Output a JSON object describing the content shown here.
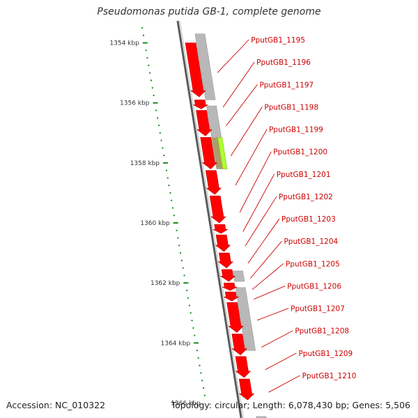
{
  "title": "Pseudomonas putida GB-1, complete genome",
  "accession": "Accession: NC_010322",
  "topology": "Topology: circular; Length: 6,078,430 bp; Genes: 5,506",
  "scale": {
    "start_kbp": 1353.5,
    "end_kbp": 1366.5,
    "labels": [
      "1354 kbp",
      "1356 kbp",
      "1358 kbp",
      "1360 kbp",
      "1362 kbp",
      "1364 kbp",
      "1366 kbp"
    ]
  },
  "genes": [
    {
      "label": "PputGB1_1195",
      "start_kbp": 1354.0,
      "end_kbp": 1355.8
    },
    {
      "label": "PputGB1_1196",
      "start_kbp": 1355.9,
      "end_kbp": 1356.2
    },
    {
      "label": "PputGB1_1197",
      "start_kbp": 1356.25,
      "end_kbp": 1357.1
    },
    {
      "label": "PputGB1_1198",
      "start_kbp": 1357.15,
      "end_kbp": 1358.2
    },
    {
      "label": "PputGB1_1199",
      "start_kbp": 1358.25,
      "end_kbp": 1359.05
    },
    {
      "label": "PputGB1_1200",
      "start_kbp": 1359.1,
      "end_kbp": 1360.0
    },
    {
      "label": "PputGB1_1201",
      "start_kbp": 1360.05,
      "end_kbp": 1360.35
    },
    {
      "label": "PputGB1_1202",
      "start_kbp": 1360.4,
      "end_kbp": 1360.95
    },
    {
      "label": "PputGB1_1203",
      "start_kbp": 1361.0,
      "end_kbp": 1361.5
    },
    {
      "label": "PputGB1_1204",
      "start_kbp": 1361.55,
      "end_kbp": 1361.95
    },
    {
      "label": "PputGB1_1205",
      "start_kbp": 1362.0,
      "end_kbp": 1362.25
    },
    {
      "label": "PputGB1_1206",
      "start_kbp": 1362.3,
      "end_kbp": 1362.6
    },
    {
      "label": "PputGB1_1207",
      "start_kbp": 1362.65,
      "end_kbp": 1363.65
    },
    {
      "label": "PputGB1_1208",
      "start_kbp": 1363.7,
      "end_kbp": 1364.4
    },
    {
      "label": "PputGB1_1209",
      "start_kbp": 1364.45,
      "end_kbp": 1365.15
    },
    {
      "label": "PputGB1_1210",
      "start_kbp": 1365.2,
      "end_kbp": 1365.9
    }
  ],
  "gray_blocks": [
    {
      "start_kbp": 1353.7,
      "end_kbp": 1355.9
    },
    {
      "start_kbp": 1356.1,
      "end_kbp": 1358.2
    },
    {
      "start_kbp": 1361.6,
      "end_kbp": 1361.95
    },
    {
      "start_kbp": 1362.15,
      "end_kbp": 1364.25
    },
    {
      "start_kbp": 1366.45,
      "end_kbp": 1366.5
    }
  ],
  "highlight_block": {
    "start_kbp": 1357.15,
    "end_kbp": 1358.2
  },
  "colors": {
    "gene": "#ff0000",
    "gene_dark": "#c00000",
    "label": "#cc0000",
    "gray_block": "#b8b8b8",
    "highlight": "#adff2f",
    "scale_dots": "#1a8c1a",
    "backbone": "#777777"
  }
}
